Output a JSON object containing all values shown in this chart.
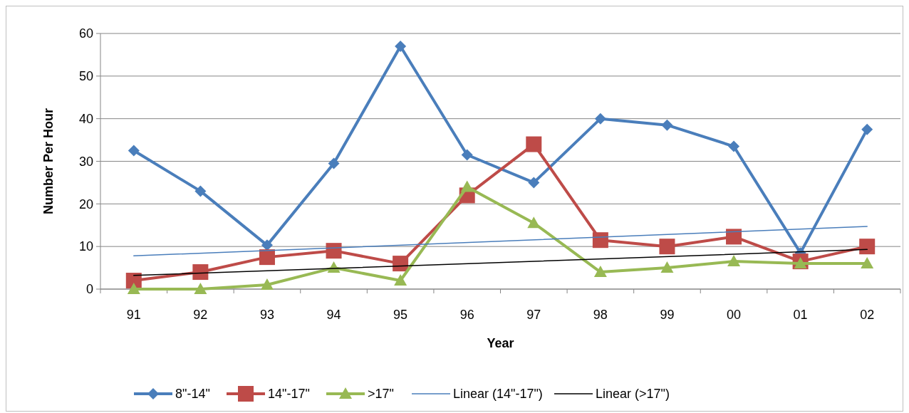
{
  "chart_data": {
    "type": "line",
    "xlabel": "Year",
    "ylabel": "Number Per Hour",
    "categories": [
      "91",
      "92",
      "93",
      "94",
      "95",
      "96",
      "97",
      "98",
      "99",
      "00",
      "01",
      "02"
    ],
    "series": [
      {
        "name": "8\"-14\"",
        "color": "#4a7ebb",
        "marker": "diamond",
        "values": [
          32.5,
          23,
          10.3,
          29.5,
          57,
          31.5,
          25,
          40,
          38.5,
          33.5,
          8.5,
          37.5
        ]
      },
      {
        "name": "14\"-17\"",
        "color": "#be4b48",
        "marker": "square",
        "values": [
          2,
          4,
          7.5,
          9,
          6,
          22,
          34,
          11.5,
          10,
          12.3,
          6.5,
          10
        ]
      },
      {
        "name": ">17\"",
        "color": "#98b954",
        "marker": "triangle",
        "values": [
          0,
          0,
          1,
          5,
          2,
          24,
          15.5,
          4,
          5,
          6.5,
          6,
          6
        ]
      },
      {
        "name": "Linear (14\"-17\")",
        "color": "#4a7ebb",
        "marker": "none",
        "x": [
          "91",
          "02"
        ],
        "values": [
          7.8,
          14.7
        ]
      },
      {
        "name": "Linear (>17\")",
        "color": "#000000",
        "marker": "none",
        "x": [
          "91",
          "02"
        ],
        "values": [
          3.2,
          9.3
        ]
      }
    ],
    "ylim": [
      0,
      60
    ],
    "yticks": [
      0,
      10,
      20,
      30,
      40,
      50,
      60
    ],
    "grid": "y",
    "legend": "bottom"
  }
}
